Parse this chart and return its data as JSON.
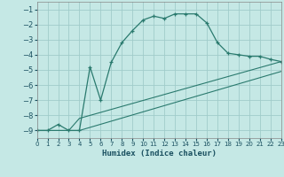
{
  "xlabel": "Humidex (Indice chaleur)",
  "background_color": "#c5e8e5",
  "grid_color": "#a0ccca",
  "line_color": "#2a7a6e",
  "xlim": [
    0,
    23
  ],
  "ylim": [
    -9.5,
    -0.5
  ],
  "xticks": [
    0,
    1,
    2,
    3,
    4,
    5,
    6,
    7,
    8,
    9,
    10,
    11,
    12,
    13,
    14,
    15,
    16,
    17,
    18,
    19,
    20,
    21,
    22,
    23
  ],
  "yticks": [
    -1,
    -2,
    -3,
    -4,
    -5,
    -6,
    -7,
    -8,
    -9
  ],
  "line1_x": [
    0,
    1,
    2,
    3,
    4,
    5,
    6,
    7,
    8,
    9,
    10,
    11,
    12,
    13,
    14,
    15,
    16,
    17,
    18,
    19,
    20,
    21,
    22,
    23
  ],
  "line1_y": [
    -9.0,
    -9.0,
    -8.6,
    -9.0,
    -9.0,
    -4.8,
    -7.0,
    -4.5,
    -3.2,
    -2.4,
    -1.7,
    -1.45,
    -1.6,
    -1.3,
    -1.3,
    -1.3,
    -1.9,
    -3.2,
    -3.9,
    -4.0,
    -4.1,
    -4.1,
    -4.3,
    -4.45
  ],
  "line2_x": [
    0,
    2,
    3,
    4,
    23
  ],
  "line2_y": [
    -9.0,
    -9.0,
    -9.0,
    -8.2,
    -4.45
  ],
  "line3_x": [
    0,
    2,
    3,
    4,
    23
  ],
  "line3_y": [
    -9.0,
    -9.0,
    -9.0,
    -9.0,
    -5.1
  ]
}
